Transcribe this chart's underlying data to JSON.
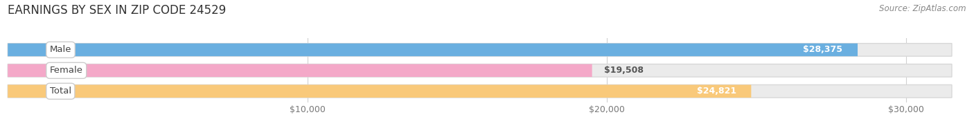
{
  "title": "EARNINGS BY SEX IN ZIP CODE 24529",
  "source": "Source: ZipAtlas.com",
  "categories": [
    "Male",
    "Female",
    "Total"
  ],
  "values": [
    28375,
    19508,
    24821
  ],
  "bar_colors": [
    "#6aafe0",
    "#f4a8c8",
    "#f9c97a"
  ],
  "bar_bg_colors": [
    "#ebebeb",
    "#ebebeb",
    "#ebebeb"
  ],
  "value_label_colors": [
    "#ffffff",
    "#555555",
    "#ffffff"
  ],
  "value_labels": [
    "$28,375",
    "$19,508",
    "$24,821"
  ],
  "x_ticks": [
    10000,
    20000,
    30000
  ],
  "x_tick_labels": [
    "$10,000",
    "$20,000",
    "$30,000"
  ],
  "xlim_max": 32000,
  "bg_color": "#ffffff",
  "title_fontsize": 12,
  "title_color": "#333333",
  "bar_height": 0.62,
  "source_fontsize": 8.5,
  "label_bubble_color": "#ffffff",
  "label_bubble_edge": "#cccccc",
  "label_text_color": "#444444",
  "label_fontsize": 9.5,
  "value_fontsize": 9,
  "tick_fontsize": 9,
  "tick_color": "#777777"
}
